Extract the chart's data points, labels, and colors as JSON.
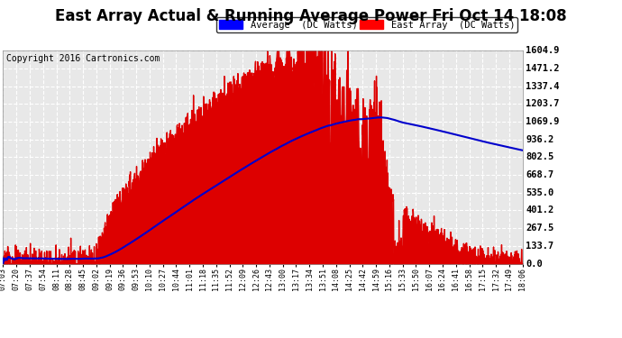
{
  "title": "East Array Actual & Running Average Power Fri Oct 14 18:08",
  "copyright": "Copyright 2016 Cartronics.com",
  "ylabel_right_ticks": [
    0.0,
    133.7,
    267.5,
    401.2,
    535.0,
    668.7,
    802.5,
    936.2,
    1069.9,
    1203.7,
    1337.4,
    1471.2,
    1604.9
  ],
  "ymax": 1604.9,
  "ymin": 0.0,
  "legend_labels": [
    "Average  (DC Watts)",
    "East Array  (DC Watts)"
  ],
  "x_tick_labels": [
    "07:03",
    "07:20",
    "07:37",
    "07:54",
    "08:11",
    "08:28",
    "08:45",
    "09:02",
    "09:19",
    "09:36",
    "09:53",
    "10:10",
    "10:27",
    "10:44",
    "11:01",
    "11:18",
    "11:35",
    "11:52",
    "12:09",
    "12:26",
    "12:43",
    "13:00",
    "13:17",
    "13:34",
    "13:51",
    "14:08",
    "14:25",
    "14:42",
    "14:59",
    "15:16",
    "15:33",
    "15:50",
    "16:07",
    "16:24",
    "16:41",
    "16:58",
    "17:15",
    "17:32",
    "17:49",
    "18:06"
  ],
  "area_color": "#dd0000",
  "line_color": "#0000cc",
  "plot_bg_color": "#e8e8e8",
  "grid_color": "#ffffff",
  "title_fontsize": 12,
  "copyright_fontsize": 7,
  "tick_fontsize": 6,
  "legend_fontsize": 7.5
}
